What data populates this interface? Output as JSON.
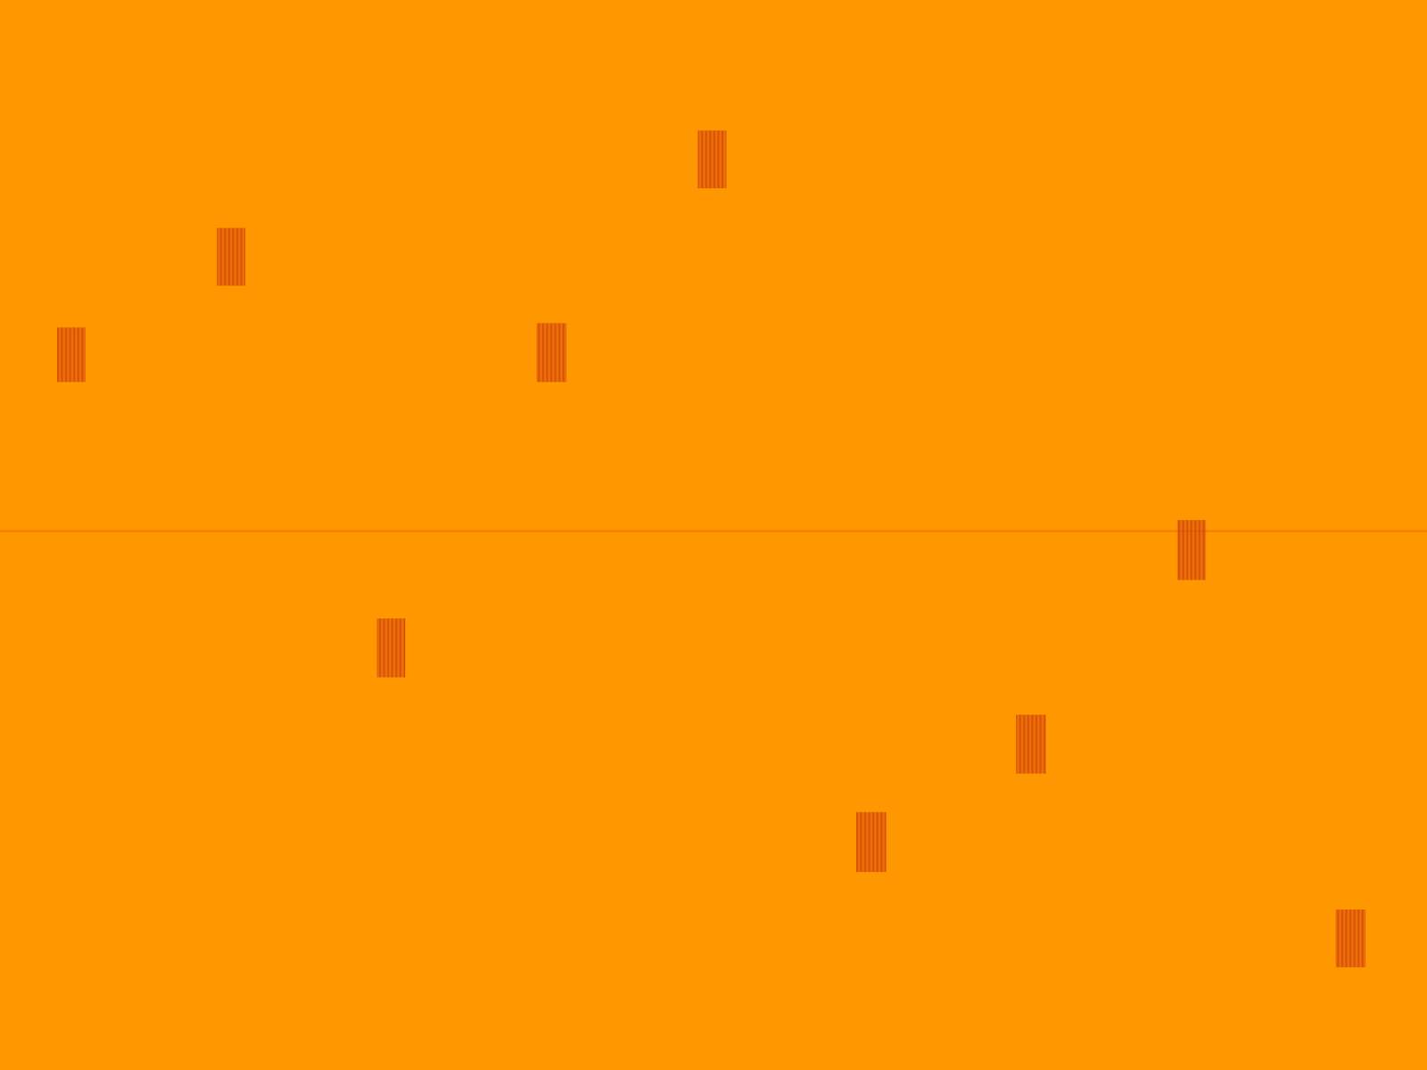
{
  "chart_data": {
    "type": "spectrogram",
    "color": "#ff9800",
    "xlim": [
      0,
      100
    ],
    "ylim": [
      0,
      100
    ],
    "tick_labels": false,
    "grid": false,
    "bursts": {
      "color": "#d9480f",
      "x1": [
        48.9,
        15.2,
        4.0,
        37.6,
        82.5,
        26.4,
        71.2,
        60.0,
        93.6
      ],
      "x2": [
        50.9,
        17.2,
        6.0,
        39.7,
        84.5,
        28.4,
        73.3,
        62.1,
        95.7
      ],
      "y1": [
        82.4,
        73.3,
        64.3,
        64.3,
        45.8,
        36.7,
        27.7,
        18.5,
        9.6
      ],
      "y2": [
        87.8,
        78.7,
        69.4,
        69.8,
        51.4,
        42.2,
        33.2,
        24.1,
        15.0
      ]
    },
    "lines": {
      "color": "#f07000",
      "y": [
        50.4
      ]
    }
  }
}
